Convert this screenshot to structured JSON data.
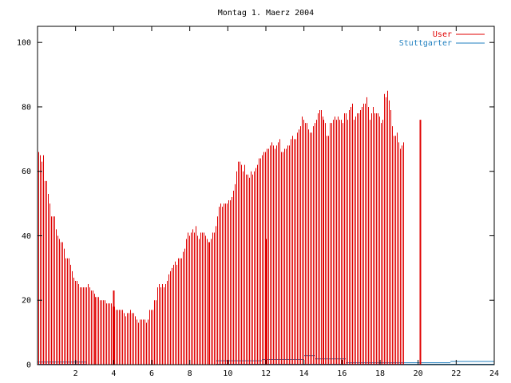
{
  "chart_data": {
    "type": "bar",
    "title": "Montag 1. Maerz 2004",
    "xlabel": "",
    "ylabel": "",
    "xlim": [
      0,
      24
    ],
    "ylim": [
      0,
      105
    ],
    "x_ticks": [
      2,
      4,
      6,
      8,
      10,
      12,
      14,
      16,
      18,
      20,
      22,
      24
    ],
    "y_ticks": [
      0,
      20,
      40,
      60,
      80,
      100
    ],
    "grid": false,
    "legend": "top-right",
    "colors": {
      "User": "#e00000",
      "Stuttgarter": "#1f7fbf"
    },
    "series": [
      {
        "name": "User",
        "x_step_minutes": 5,
        "values": [
          66,
          65,
          63,
          65,
          57,
          57,
          53,
          50,
          46,
          46,
          46,
          42,
          40,
          39,
          38,
          38,
          36,
          33,
          33,
          33,
          31,
          29,
          27,
          26,
          26,
          25,
          24,
          24,
          24,
          24,
          24,
          25,
          24,
          23,
          23,
          22,
          21,
          21,
          21,
          20,
          20,
          20,
          20,
          19,
          19,
          19,
          19,
          18,
          18,
          17,
          17,
          17,
          17,
          17,
          16,
          15,
          16,
          16,
          17,
          16,
          16,
          15,
          14,
          13,
          14,
          14,
          14,
          14,
          13,
          14,
          17,
          17,
          17,
          20,
          20,
          24,
          25,
          24,
          25,
          24,
          25,
          26,
          28,
          29,
          30,
          31,
          32,
          31,
          33,
          33,
          33,
          35,
          36,
          39,
          41,
          40,
          41,
          42,
          41,
          43,
          40,
          39,
          41,
          41,
          41,
          40,
          39,
          38,
          38,
          39,
          41,
          41,
          43,
          46,
          49,
          50,
          49,
          50,
          50,
          50,
          51,
          51,
          52,
          54,
          56,
          60,
          63,
          63,
          62,
          60,
          62,
          59,
          59,
          58,
          60,
          59,
          60,
          61,
          62,
          64,
          64,
          65,
          66,
          66,
          67,
          67,
          68,
          69,
          68,
          67,
          68,
          69,
          70,
          66,
          66,
          67,
          67,
          68,
          68,
          70,
          71,
          70,
          70,
          72,
          73,
          74,
          77,
          76,
          75,
          75,
          73,
          72,
          72,
          74,
          75,
          76,
          78,
          79,
          79,
          77,
          76,
          75,
          71,
          71,
          75,
          75,
          76,
          77,
          76,
          77,
          76,
          76,
          75,
          78,
          78,
          76,
          79,
          80,
          81,
          76,
          77,
          78,
          78,
          79,
          80,
          81,
          81,
          83,
          80,
          76,
          78,
          80,
          78,
          78,
          78,
          77,
          75,
          76,
          84,
          83,
          85,
          82,
          79,
          74,
          71,
          71,
          72,
          69,
          67,
          68,
          69
        ]
      },
      {
        "name": "Stuttgarter",
        "segments": [
          {
            "x_start": 0.0,
            "x_end": 2.6,
            "value": 0.8
          },
          {
            "x_start": 9.4,
            "x_end": 11.8,
            "value": 1.2
          },
          {
            "x_start": 11.8,
            "x_end": 14.0,
            "value": 1.6
          },
          {
            "x_start": 14.0,
            "x_end": 14.6,
            "value": 2.8
          },
          {
            "x_start": 14.6,
            "x_end": 16.2,
            "value": 1.8
          },
          {
            "x_start": 16.2,
            "x_end": 21.7,
            "value": 0.6
          },
          {
            "x_start": 21.7,
            "x_end": 24.0,
            "value": 1.0
          }
        ]
      }
    ],
    "spikes": [
      {
        "x": 4.0,
        "value": 23
      },
      {
        "x": 12.0,
        "value": 39
      },
      {
        "x": 20.1,
        "value": 76
      }
    ]
  }
}
